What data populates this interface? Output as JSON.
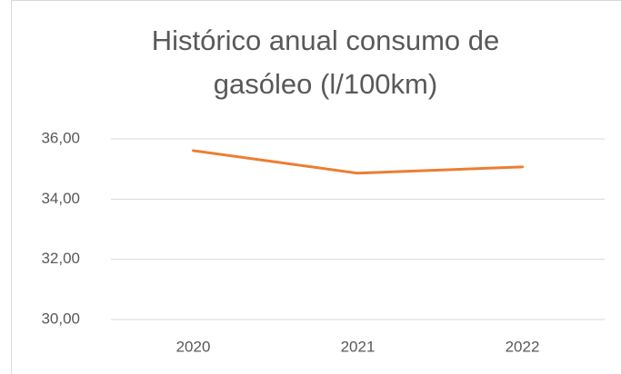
{
  "chart_data": {
    "type": "line",
    "title": [
      "Histórico anual consumo de",
      "gasóleo (l/100km)"
    ],
    "categories": [
      "2020",
      "2021",
      "2022"
    ],
    "series": [
      {
        "color": "#ed7d31",
        "values": [
          35.61,
          34.86,
          35.07
        ]
      }
    ],
    "ylim": [
      30,
      36
    ],
    "yticks": [
      {
        "value": 30,
        "label": "30,00"
      },
      {
        "value": 32,
        "label": "32,00"
      },
      {
        "value": 34,
        "label": "34,00"
      },
      {
        "value": 36,
        "label": "36,00"
      }
    ],
    "grid": true
  }
}
